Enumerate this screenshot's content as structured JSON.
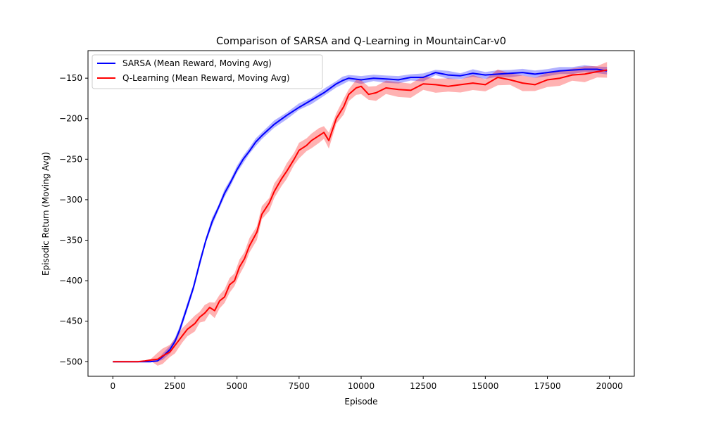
{
  "chart_data": {
    "type": "line",
    "title": "Comparison of SARSA and Q-Learning in MountainCar-v0",
    "xlabel": "Episode",
    "ylabel": "Episodic Return (Moving Avg)",
    "xlim": [
      -1000,
      21000
    ],
    "ylim": [
      -518,
      -116
    ],
    "xticks": [
      0,
      2500,
      5000,
      7500,
      10000,
      12500,
      15000,
      17500,
      20000
    ],
    "yticks": [
      -500,
      -450,
      -400,
      -350,
      -300,
      -250,
      -200,
      -150
    ],
    "xtick_labels": [
      "0",
      "2500",
      "5000",
      "7500",
      "10000",
      "12500",
      "15000",
      "17500",
      "20000"
    ],
    "ytick_labels": [
      "−500",
      "−450",
      "−400",
      "−350",
      "−300",
      "−250",
      "−200",
      "−150"
    ],
    "grid": false,
    "legend_position": "upper-left",
    "series": [
      {
        "name": "SARSA (Mean Reward, Moving Avg)",
        "color": "#0000ff",
        "band_width": 5,
        "x": [
          0,
          1000,
          1500,
          1800,
          2000,
          2300,
          2500,
          2700,
          3000,
          3250,
          3500,
          3750,
          4000,
          4250,
          4500,
          4750,
          5000,
          5250,
          5500,
          5750,
          6000,
          6500,
          7000,
          7500,
          8000,
          8500,
          9000,
          9250,
          9500,
          10000,
          10500,
          11000,
          11500,
          12000,
          12500,
          13000,
          13500,
          14000,
          14500,
          15000,
          15500,
          16000,
          16500,
          17000,
          17500,
          18000,
          18500,
          19000,
          19500,
          19900
        ],
        "values": [
          -500,
          -500,
          -500,
          -499,
          -494,
          -485,
          -475,
          -460,
          -432,
          -408,
          -378,
          -350,
          -327,
          -310,
          -292,
          -278,
          -263,
          -250,
          -240,
          -229,
          -221,
          -207,
          -196,
          -186,
          -177,
          -168,
          -157,
          -153,
          -150,
          -152,
          -150,
          -151,
          -152,
          -149,
          -149,
          -143,
          -146,
          -147,
          -144,
          -146,
          -145,
          -144,
          -143,
          -145,
          -143,
          -141,
          -140,
          -139,
          -139,
          -141
        ]
      },
      {
        "name": "Q-Learning (Mean Reward, Moving Avg)",
        "color": "#ff0000",
        "band_width": 10,
        "x": [
          0,
          1000,
          1300,
          1500,
          1800,
          2000,
          2300,
          2500,
          2800,
          3000,
          3300,
          3500,
          3700,
          3900,
          4100,
          4300,
          4500,
          4700,
          4900,
          5100,
          5300,
          5500,
          5800,
          6000,
          6300,
          6500,
          6800,
          7000,
          7300,
          7500,
          7800,
          8000,
          8300,
          8500,
          8700,
          9000,
          9300,
          9500,
          9800,
          10000,
          10300,
          10600,
          11000,
          11500,
          12000,
          12500,
          13000,
          13500,
          14000,
          14500,
          15000,
          15500,
          16000,
          16500,
          17000,
          17500,
          18000,
          18500,
          19000,
          19500,
          19900
        ],
        "values": [
          -500,
          -500,
          -499,
          -498,
          -497,
          -493,
          -488,
          -480,
          -468,
          -460,
          -453,
          -445,
          -440,
          -433,
          -437,
          -425,
          -420,
          -405,
          -400,
          -383,
          -373,
          -357,
          -340,
          -318,
          -304,
          -290,
          -274,
          -265,
          -250,
          -239,
          -233,
          -227,
          -221,
          -217,
          -227,
          -200,
          -185,
          -170,
          -162,
          -160,
          -170,
          -168,
          -162,
          -164,
          -165,
          -157,
          -158,
          -160,
          -158,
          -156,
          -158,
          -149,
          -152,
          -156,
          -158,
          -152,
          -150,
          -146,
          -145,
          -142,
          -140
        ]
      }
    ]
  }
}
